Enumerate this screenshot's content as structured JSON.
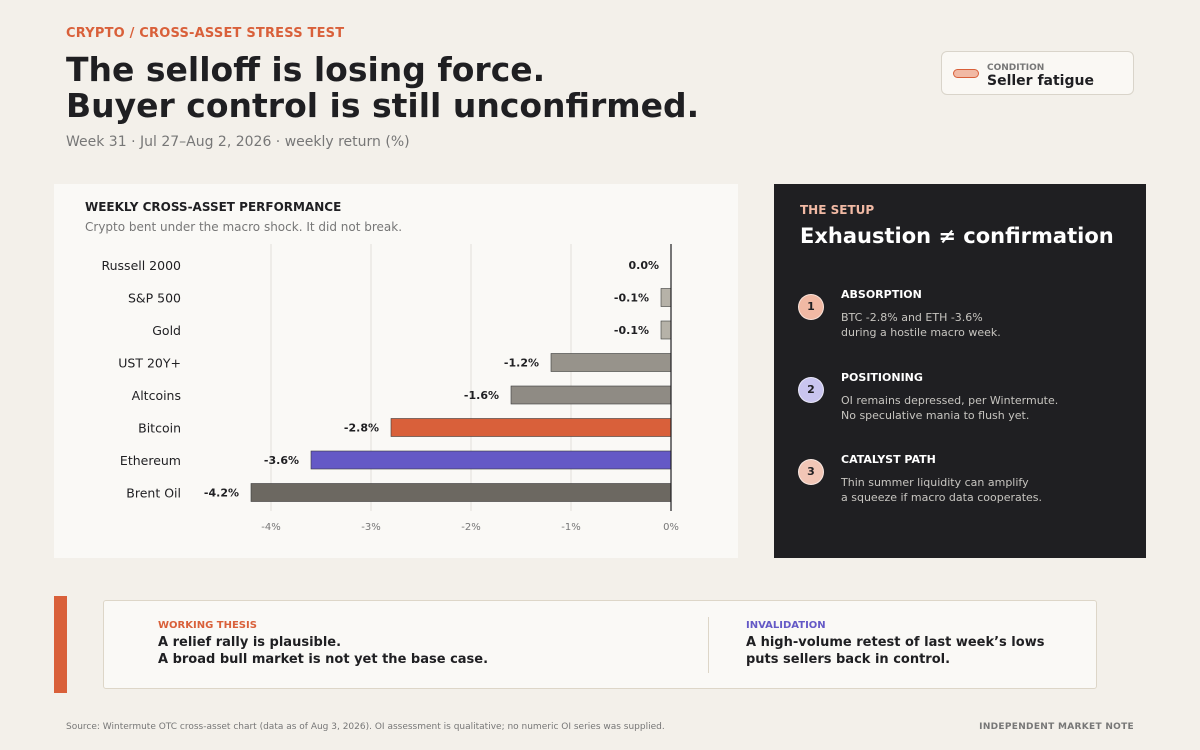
{
  "header": {
    "kicker": "CRYPTO / CROSS-ASSET STRESS TEST",
    "title_line1": "The selloff is losing force.",
    "title_line2": "Buyer control is still unconfirmed.",
    "subtitle": "Week 31 · Jul 27–Aug 2, 2026 · weekly return (%)"
  },
  "condition": {
    "label": "CONDITION",
    "value": "Seller fatigue"
  },
  "chart_card": {
    "title": "WEEKLY CROSS-ASSET PERFORMANCE",
    "subtitle": "Crypto bent under the macro shock. It did not break."
  },
  "chart_data": {
    "type": "bar",
    "orientation": "horizontal",
    "categories": [
      "Russell 2000",
      "S&P 500",
      "Gold",
      "UST 20Y+",
      "Altcoins",
      "Bitcoin",
      "Ethereum",
      "Brent Oil"
    ],
    "values": [
      0.0,
      -0.1,
      -0.1,
      -1.2,
      -1.6,
      -2.8,
      -3.6,
      -4.2
    ],
    "value_labels": [
      "0.0%",
      "-0.1%",
      "-0.1%",
      "-1.2%",
      "-1.6%",
      "-2.8%",
      "-3.6%",
      "-4.2%"
    ],
    "colors": [
      "#b6b2a8",
      "#b6b2a8",
      "#b6b2a8",
      "#97938b",
      "#8f8b84",
      "#d9603a",
      "#6459c6",
      "#6c6861"
    ],
    "xlim": [
      -4.5,
      0
    ],
    "xticks": [
      -4,
      -3,
      -2,
      -1,
      0
    ],
    "xtick_labels": [
      "-4%",
      "-3%",
      "-2%",
      "-1%",
      "0%"
    ],
    "grid": true,
    "xlabel": "",
    "ylabel": ""
  },
  "setup": {
    "kicker": "THE SETUP",
    "title": "Exhaustion ≠ confirmation",
    "steps": [
      {
        "num": "1",
        "head": "ABSORPTION",
        "line1": "BTC -2.8% and ETH -3.6%",
        "line2": "during a hostile macro week.",
        "color": "#f1b9a4"
      },
      {
        "num": "2",
        "head": "POSITIONING",
        "line1": "OI remains depressed, per Wintermute.",
        "line2": "No speculative mania to flush yet.",
        "color": "#c9c5ef"
      },
      {
        "num": "3",
        "head": "CATALYST PATH",
        "line1": "Thin summer liquidity can amplify",
        "line2": "a squeeze if macro data cooperates.",
        "color": "#f1c6b6"
      }
    ]
  },
  "thesis": {
    "label": "WORKING THESIS",
    "line1": "A relief rally is plausible.",
    "line2": "A broad bull market is not yet the base case.",
    "label_color": "#d9603a"
  },
  "invalidation": {
    "label": "INVALIDATION",
    "line1": "A high-volume retest of last week’s lows",
    "line2": "puts sellers back in control.",
    "label_color": "#6459c6"
  },
  "footer": {
    "source": "Source: Wintermute OTC cross-asset chart (data as of Aug 3, 2026). OI assessment is qualitative; no numeric OI series was supplied.",
    "brand": "INDEPENDENT MARKET NOTE"
  }
}
